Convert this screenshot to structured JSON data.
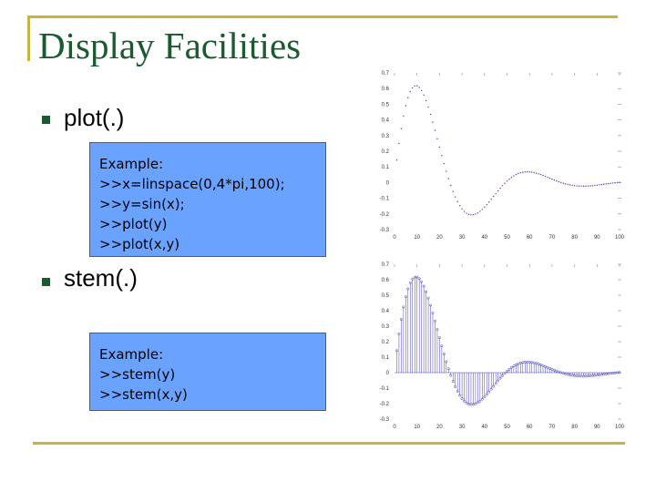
{
  "title": "Display Facilities",
  "bullets": [
    {
      "label": "plot(.)",
      "example_lines": [
        "Example:",
        ">>x=linspace(0,4*pi,100);",
        ">>y=sin(x);",
        ">>plot(y)",
        ">>plot(x,y)"
      ]
    },
    {
      "label": "stem(.)",
      "example_lines": [
        "Example:",
        ">>stem(y)",
        ">>stem(x,y)"
      ]
    }
  ],
  "colors": {
    "title": "#1a5a2f",
    "frame": "#c9b33a",
    "code_bg": "#6aa3ff",
    "series": "#4040c0"
  },
  "chart_data": [
    {
      "type": "line",
      "title": "",
      "xlabel": "",
      "ylabel": "",
      "xlim": [
        0,
        100
      ],
      "ylim": [
        -0.3,
        0.7
      ],
      "x_ticks": [
        "0",
        "10",
        "20",
        "30",
        "40",
        "50",
        "60",
        "70",
        "80",
        "90",
        "100"
      ],
      "y_ticks": [
        "-0.3",
        "-0.2",
        "-0.1",
        "0",
        "0.1",
        "0.2",
        "0.3",
        "0.4",
        "0.5",
        "0.6",
        "0.7"
      ],
      "series": [
        {
          "x_start": 1,
          "x_end": 100,
          "y_function": "damped_sine",
          "peak": {
            "x": 12,
            "y": 0.66
          }
        }
      ]
    },
    {
      "type": "stem",
      "title": "",
      "xlabel": "",
      "ylabel": "",
      "xlim": [
        0,
        100
      ],
      "ylim": [
        -0.3,
        0.7
      ],
      "x_ticks": [
        "0",
        "10",
        "20",
        "30",
        "40",
        "50",
        "60",
        "70",
        "80",
        "90",
        "100"
      ],
      "y_ticks": [
        "-0.3",
        "-0.2",
        "-0.1",
        "0",
        "0.1",
        "0.2",
        "0.3",
        "0.4",
        "0.5",
        "0.6",
        "0.7"
      ],
      "series": [
        {
          "x_start": 1,
          "x_end": 100,
          "y_function": "damped_sine",
          "peak": {
            "x": 12,
            "y": 0.66
          }
        }
      ]
    }
  ]
}
